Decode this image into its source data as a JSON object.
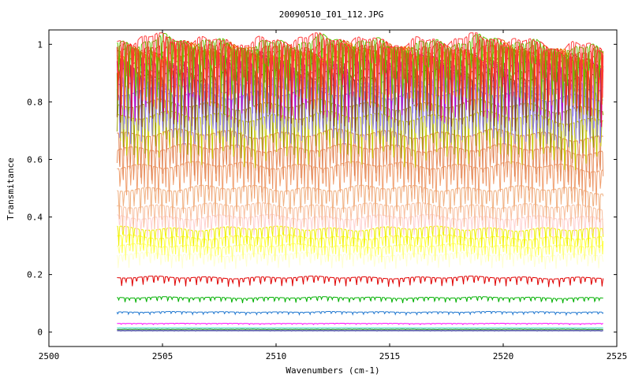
{
  "chart_data": {
    "type": "line",
    "title": "20090510_I01_112.JPG",
    "xlabel": "Wavenumbers (cm-1)",
    "ylabel": "Transmitance",
    "xlim": [
      2500,
      2525
    ],
    "ylim": [
      -0.05,
      1.05
    ],
    "x_ticks": [
      2500,
      2505,
      2510,
      2515,
      2520,
      2525
    ],
    "y_ticks": [
      0,
      0.2,
      0.4,
      0.6,
      0.8,
      1
    ],
    "y_tick_labels": [
      "0",
      "0.2",
      "0.4",
      "0.6",
      "0.8",
      "1"
    ],
    "x_range_of_data": [
      2503,
      2524.4
    ],
    "line_spacing_cm1": 0.47,
    "grid": false,
    "legend": "none",
    "series": [
      {
        "color": "#000080",
        "baseline": 0.005
      },
      {
        "color": "#008000",
        "baseline": 0.01
      },
      {
        "color": "#40e0d0",
        "baseline": 0.015
      },
      {
        "color": "#ff00ff",
        "baseline": 0.03
      },
      {
        "color": "#1f77d0",
        "baseline": 0.07
      },
      {
        "color": "#00b000",
        "baseline": 0.12
      },
      {
        "color": "#e00000",
        "baseline": 0.19
      },
      {
        "color": "#ffffd0",
        "baseline": 0.27
      },
      {
        "color": "#ffff80",
        "baseline": 0.3
      },
      {
        "color": "#ffff40",
        "baseline": 0.33
      },
      {
        "color": "#f0f000",
        "baseline": 0.36
      },
      {
        "color": "#ffd0d0",
        "baseline": 0.4
      },
      {
        "color": "#f8c0a0",
        "baseline": 0.44
      },
      {
        "color": "#f0b080",
        "baseline": 0.5
      },
      {
        "color": "#f0a070",
        "baseline": 0.58
      },
      {
        "color": "#e89060",
        "baseline": 0.64
      },
      {
        "color": "#e08050",
        "baseline": 0.69
      },
      {
        "color": "#c8c800",
        "baseline": 0.75
      },
      {
        "color": "#a0a000",
        "baseline": 0.79
      },
      {
        "color": "#8070e0",
        "baseline": 0.83
      },
      {
        "color": "#9080e8",
        "baseline": 0.86
      },
      {
        "color": "#a090f0",
        "baseline": 0.88
      },
      {
        "color": "#804020",
        "baseline": 0.9
      },
      {
        "color": "#a05030",
        "baseline": 0.92
      },
      {
        "color": "#c000c0",
        "baseline": 0.94
      },
      {
        "color": "#e00060",
        "baseline": 0.955
      },
      {
        "color": "#80a000",
        "baseline": 0.965
      },
      {
        "color": "#f0a000",
        "baseline": 0.975
      },
      {
        "color": "#e06000",
        "baseline": 0.985
      },
      {
        "color": "#ff2020",
        "baseline": 0.995
      },
      {
        "color": "#60c000",
        "baseline": 1.005
      },
      {
        "color": "#ff4040",
        "baseline": 1.012
      }
    ]
  }
}
